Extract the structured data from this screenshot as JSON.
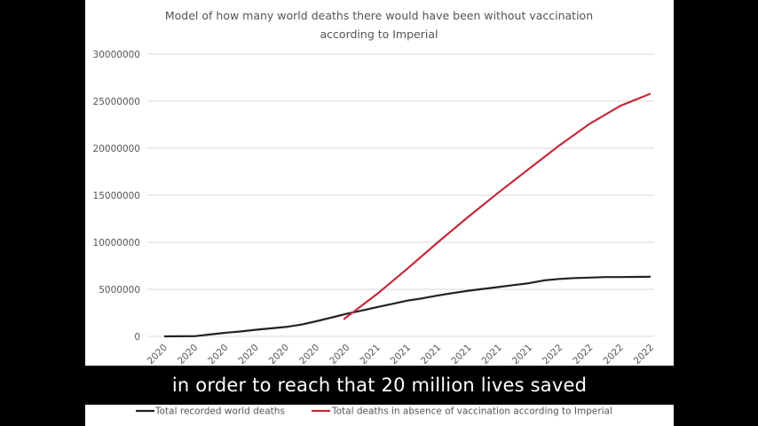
{
  "chart_data": {
    "type": "line",
    "title": "Model of how many world deaths there would have been without vaccination according to Imperial",
    "title_lines": [
      "Model of how many world deaths there would have been without vaccination",
      "according to Imperial"
    ],
    "ylim": [
      0,
      30000000
    ],
    "yticks": [
      "0",
      "5000000",
      "10000000",
      "15000000",
      "20000000",
      "25000000",
      "30000000"
    ],
    "ytick_values": [
      0,
      5000000,
      10000000,
      15000000,
      20000000,
      25000000,
      30000000
    ],
    "xticks": [
      "2020",
      "2020",
      "2020",
      "2020",
      "2020",
      "2020",
      "2020",
      "2021",
      "2021",
      "2021",
      "2021",
      "2021",
      "2021",
      "2022",
      "2022",
      "2022",
      "2022"
    ],
    "grid": true,
    "legend_position": "bottom",
    "series": [
      {
        "name": "Total recorded world deaths",
        "color": "#222222",
        "x": [
          0,
          0.5,
          1,
          1.5,
          2,
          2.5,
          3,
          3.5,
          4,
          4.5,
          5,
          5.5,
          6,
          6.5,
          7,
          7.5,
          8,
          8.5,
          9,
          9.5,
          10,
          10.5,
          11,
          11.5,
          12,
          12.5,
          13,
          13.5,
          14,
          14.5,
          15,
          15.5,
          16
        ],
        "values": [
          0,
          5000,
          20000,
          200000,
          380000,
          520000,
          700000,
          850000,
          1000000,
          1250000,
          1600000,
          2000000,
          2400000,
          2750000,
          3100000,
          3450000,
          3800000,
          4050000,
          4350000,
          4600000,
          4850000,
          5050000,
          5250000,
          5450000,
          5650000,
          5950000,
          6100000,
          6200000,
          6250000,
          6300000,
          6300000,
          6320000,
          6340000
        ]
      },
      {
        "name": "Total deaths in absence of vaccination according to Imperial",
        "color": "#c62a3b",
        "x": [
          5.9,
          7,
          8,
          9,
          10,
          11,
          12,
          13,
          14,
          15,
          16
        ],
        "values": [
          1800000,
          4500000,
          7200000,
          10000000,
          12700000,
          15300000,
          17800000,
          20300000,
          22600000,
          24500000,
          25800000
        ]
      }
    ]
  },
  "caption": "in order to reach that 20 million lives saved",
  "colors": {
    "background": "#000000",
    "panel": "#ffffff",
    "grid": "#d9d9d9",
    "text": "#555555"
  }
}
